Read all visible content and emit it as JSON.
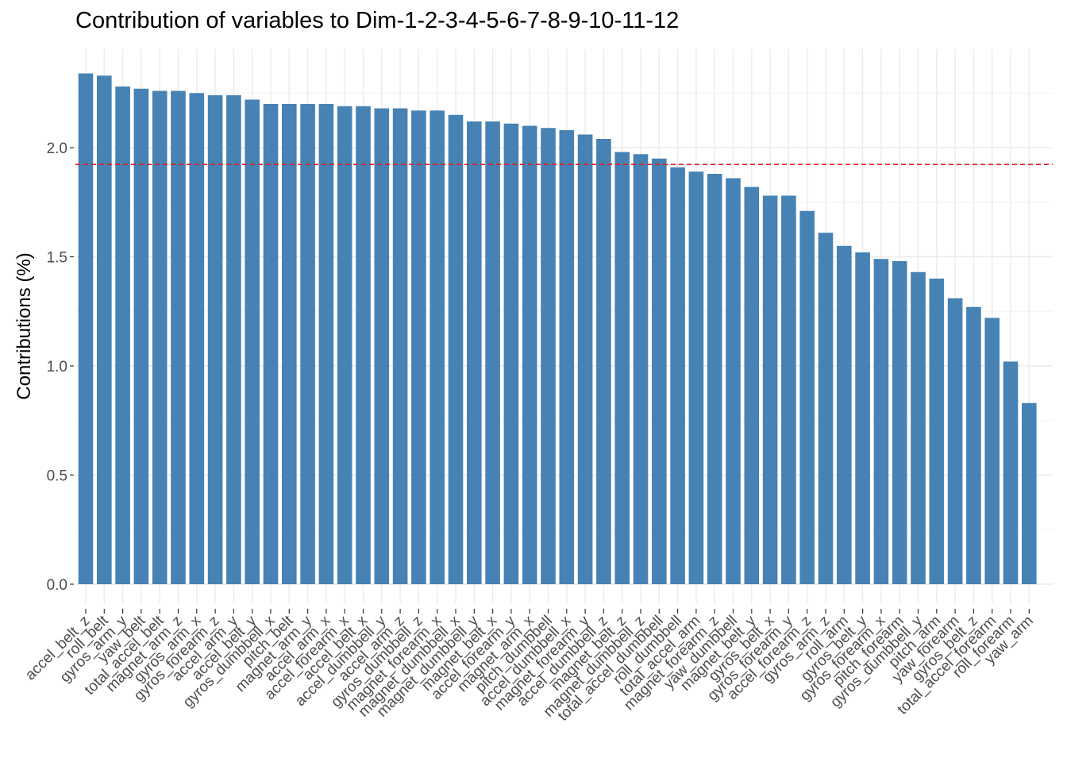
{
  "chart_data": {
    "type": "bar",
    "title": "Contribution of variables to Dim-1-2-3-4-5-6-7-8-9-10-11-12",
    "xlabel": "",
    "ylabel": "Contributions (%)",
    "ylim": [
      0,
      2.35
    ],
    "yticks": [
      "0.0",
      "0.5",
      "1.0",
      "1.5",
      "2.0"
    ],
    "reference_line": 1.923,
    "grid": true,
    "colors": {
      "bar": "#4682B4",
      "reference_line": "#E41A1C",
      "grid": "#EBEBEB"
    },
    "categories": [
      "accel_belt_z",
      "roll_belt",
      "gyros_arm_y",
      "yaw_belt",
      "total_accel_belt",
      "magnet_arm_z",
      "gyros_arm_x",
      "gyros_forearm_z",
      "accel_arm_y",
      "accel_belt_y",
      "gyros_dumbbell_x",
      "pitch_belt",
      "magnet_arm_y",
      "accel_arm_x",
      "accel_forearm_x",
      "accel_belt_x",
      "accel_dumbbell_y",
      "accel_arm_z",
      "gyros_dumbbell_z",
      "magnet_forearm_x",
      "magnet_dumbbell_x",
      "magnet_dumbbell_y",
      "magnet_belt_x",
      "accel_forearm_y",
      "magnet_arm_x",
      "pitch_dumbbell",
      "accel_dumbbell_x",
      "magnet_forearm_y",
      "accel_dumbbell_z",
      "magnet_belt_z",
      "magnet_dumbbell_z",
      "total_accel_dumbbell",
      "roll_dumbbell",
      "total_accel_arm",
      "magnet_forearm_z",
      "yaw_dumbbell",
      "magnet_belt_y",
      "gyros_belt_x",
      "gyros_forearm_y",
      "accel_forearm_z",
      "gyros_arm_z",
      "roll_arm",
      "gyros_belt_y",
      "gyros_forearm_x",
      "pitch_forearm",
      "gyros_dumbbell_y",
      "pitch_arm",
      "yaw_forearm",
      "gyros_belt_z",
      "total_accel_forearm",
      "roll_forearm",
      "yaw_arm"
    ],
    "values": [
      2.34,
      2.33,
      2.28,
      2.27,
      2.26,
      2.26,
      2.25,
      2.24,
      2.24,
      2.22,
      2.2,
      2.2,
      2.2,
      2.2,
      2.19,
      2.19,
      2.18,
      2.18,
      2.17,
      2.17,
      2.15,
      2.12,
      2.12,
      2.11,
      2.1,
      2.09,
      2.08,
      2.06,
      2.04,
      1.98,
      1.97,
      1.95,
      1.91,
      1.89,
      1.88,
      1.86,
      1.82,
      1.78,
      1.78,
      1.71,
      1.61,
      1.55,
      1.52,
      1.49,
      1.48,
      1.43,
      1.4,
      1.31,
      1.27,
      1.22,
      1.02,
      0.83
    ]
  }
}
